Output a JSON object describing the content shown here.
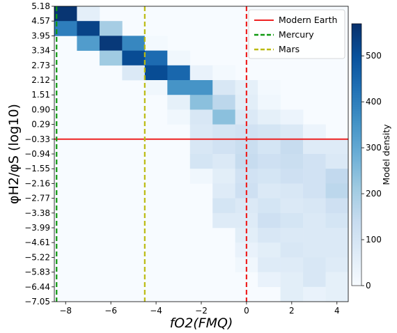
{
  "chart_data": {
    "type": "heatmap",
    "title": "",
    "xlabel": "fO2(FMQ)",
    "ylabel": "φH2/φS (log10)",
    "xlim": [
      -8.5,
      4.5
    ],
    "ylim": [
      -7.05,
      5.18
    ],
    "x_ticks": [
      "−8",
      "−6",
      "−4",
      "−2",
      "0",
      "2",
      "4"
    ],
    "x_tick_values": [
      -8,
      -6,
      -4,
      -2,
      0,
      2,
      4
    ],
    "y_ticks": [
      "5.18",
      "4.57",
      "3.95",
      "3.34",
      "2.73",
      "2.12",
      "1.51",
      "0.90",
      "0.29",
      "−0.33",
      "−0.94",
      "−1.55",
      "−2.16",
      "−2.77",
      "−3.38",
      "−3.99",
      "−4.61",
      "−5.22",
      "−5.83",
      "−6.44",
      "−7.05"
    ],
    "x_bin_edges": [
      -8.5,
      -7.5,
      -6.5,
      -5.5,
      -4.5,
      -3.5,
      -2.5,
      -1.5,
      -0.5,
      0.5,
      1.5,
      2.5,
      3.5,
      4.5
    ],
    "y_bin_edges": [
      5.18,
      4.57,
      3.95,
      3.34,
      2.73,
      2.12,
      1.51,
      0.9,
      0.29,
      -0.33,
      -0.94,
      -1.55,
      -2.16,
      -2.77,
      -3.38,
      -3.99,
      -4.61,
      -5.22,
      -5.83,
      -6.44,
      -7.05
    ],
    "density_rows_top_to_bottom": [
      [
        560,
        55,
        0,
        0,
        0,
        0,
        0,
        0,
        0,
        0,
        0,
        0,
        0
      ],
      [
        400,
        530,
        200,
        0,
        0,
        0,
        0,
        0,
        0,
        0,
        0,
        0,
        0
      ],
      [
        0,
        330,
        550,
        380,
        10,
        0,
        0,
        0,
        0,
        0,
        0,
        0,
        0
      ],
      [
        0,
        0,
        210,
        510,
        440,
        20,
        0,
        0,
        0,
        0,
        0,
        0,
        0
      ],
      [
        0,
        0,
        0,
        80,
        510,
        450,
        40,
        10,
        0,
        0,
        0,
        0,
        0
      ],
      [
        0,
        0,
        0,
        0,
        20,
        350,
        350,
        90,
        50,
        10,
        0,
        0,
        0
      ],
      [
        0,
        0,
        0,
        0,
        0,
        50,
        240,
        160,
        60,
        20,
        0,
        0,
        0
      ],
      [
        0,
        0,
        0,
        0,
        0,
        20,
        90,
        240,
        80,
        50,
        30,
        0,
        0
      ],
      [
        0,
        0,
        0,
        0,
        0,
        0,
        80,
        100,
        110,
        100,
        80,
        30,
        0
      ],
      [
        0,
        0,
        0,
        0,
        0,
        0,
        90,
        110,
        130,
        100,
        140,
        70,
        70
      ],
      [
        0,
        0,
        0,
        0,
        0,
        0,
        100,
        80,
        140,
        120,
        130,
        110,
        80
      ],
      [
        0,
        0,
        0,
        0,
        0,
        0,
        20,
        60,
        110,
        100,
        120,
        110,
        150
      ],
      [
        0,
        0,
        0,
        0,
        0,
        0,
        0,
        70,
        120,
        80,
        90,
        110,
        160
      ],
      [
        0,
        0,
        0,
        0,
        0,
        0,
        0,
        100,
        80,
        100,
        80,
        90,
        120
      ],
      [
        0,
        0,
        0,
        0,
        0,
        0,
        0,
        70,
        70,
        120,
        100,
        80,
        100
      ],
      [
        0,
        0,
        0,
        0,
        0,
        0,
        0,
        0,
        60,
        90,
        80,
        80,
        80
      ],
      [
        0,
        0,
        0,
        0,
        0,
        0,
        0,
        0,
        40,
        60,
        90,
        80,
        80
      ],
      [
        0,
        0,
        0,
        0,
        0,
        0,
        0,
        0,
        20,
        70,
        70,
        90,
        70
      ],
      [
        0,
        0,
        0,
        0,
        0,
        0,
        0,
        0,
        0,
        40,
        60,
        90,
        50
      ],
      [
        0,
        0,
        0,
        0,
        0,
        0,
        0,
        0,
        0,
        0,
        60,
        40,
        50
      ]
    ],
    "reference_lines": [
      {
        "name": "Modern Earth",
        "orientation": "vertical",
        "value": 0,
        "style": "dashed",
        "color": "#ee2222"
      },
      {
        "name": "Modern Earth",
        "orientation": "horizontal",
        "value": -0.33,
        "style": "solid",
        "color": "#ee2222"
      },
      {
        "name": "Mercury",
        "orientation": "vertical",
        "value": -8.4,
        "style": "dashed",
        "color": "#119911"
      },
      {
        "name": "Mars",
        "orientation": "vertical",
        "value": -4.5,
        "style": "dashed",
        "color": "#bbbb11"
      }
    ],
    "legend": {
      "placement": "top-right",
      "entries": [
        {
          "label": "Modern Earth",
          "color": "#ee2222",
          "style": "solid"
        },
        {
          "label": "Mercury",
          "color": "#119911",
          "style": "dashed"
        },
        {
          "label": "Mars",
          "color": "#bbbb11",
          "style": "dashed"
        }
      ]
    },
    "colorbar": {
      "label": "Model density",
      "min": 0,
      "max": 570,
      "ticks": [
        "0",
        "100",
        "200",
        "300",
        "400",
        "500"
      ],
      "tick_values": [
        0,
        100,
        200,
        300,
        400,
        500
      ],
      "colormap": "Blues",
      "colors": [
        "#f7fbff",
        "#deebf7",
        "#c6dbef",
        "#9ecae1",
        "#6baed6",
        "#4292c6",
        "#2171b5",
        "#08519c",
        "#08306b"
      ]
    },
    "grid": false
  }
}
